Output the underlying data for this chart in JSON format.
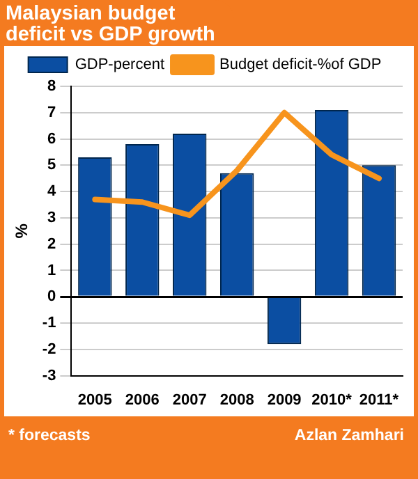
{
  "chart_data": {
    "type": "bar",
    "title": "Malaysian budget deficit vs GDP growth",
    "ylabel": "%",
    "categories": [
      "2005",
      "2006",
      "2007",
      "2008",
      "2009",
      "2010*",
      "2011*"
    ],
    "series": [
      {
        "name": "GDP-percent",
        "color": "#0b4ea2",
        "values": [
          5.3,
          5.8,
          6.2,
          4.7,
          -1.8,
          7.1,
          5.0
        ]
      },
      {
        "name": "Budget deficit-%of GDP",
        "type": "line",
        "color": "#f7941d",
        "values": [
          3.7,
          3.6,
          3.1,
          4.8,
          7.0,
          5.4,
          4.5
        ]
      }
    ],
    "ylim": [
      -3,
      8
    ],
    "yticks": [
      -3,
      -2,
      -1,
      0,
      1,
      2,
      3,
      4,
      5,
      6,
      7,
      8
    ],
    "grid": "y",
    "legend": "top",
    "marker": "none",
    "annotations": [
      "* forecasts",
      "Azlan Zamhari"
    ]
  }
}
